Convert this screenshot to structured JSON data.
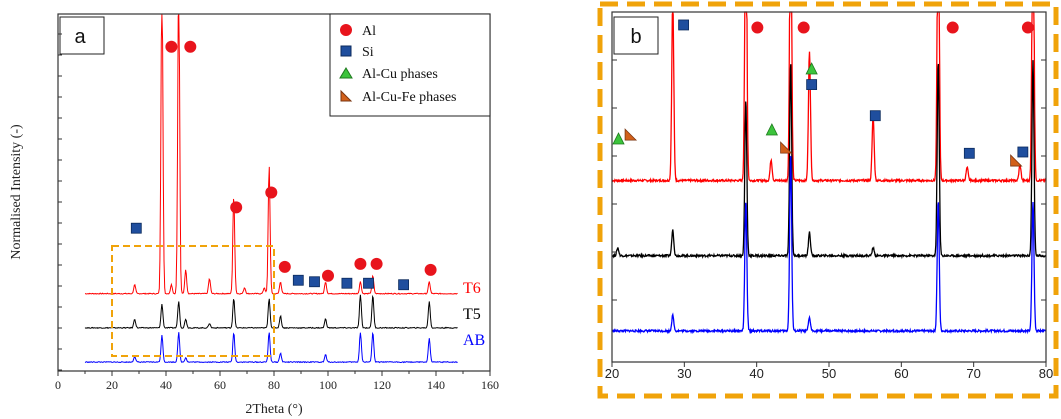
{
  "colors": {
    "t6": "#ff0000",
    "t5": "#000000",
    "ab": "#0000ff",
    "al_marker": "#e8141c",
    "si_marker": "#1f4e9e",
    "alcu_marker": "#3cc43c",
    "alcufe_marker": "#d2601a",
    "highlight_box": "#f0a30a"
  },
  "panel_a": {
    "label": "a",
    "ylabel": "Normalised Intensity (-)",
    "xlabel": "2Theta (°)",
    "legend": [
      {
        "label": "Al",
        "marker": "al-circle"
      },
      {
        "label": "Si",
        "marker": "si-square"
      },
      {
        "label": "Al-Cu phases",
        "marker": "alcu-triangle"
      },
      {
        "label": "Al-Cu-Fe phases",
        "marker": "alcufe-triangle"
      }
    ],
    "curve_labels": [
      "T6",
      "T5",
      "AB"
    ]
  },
  "panel_b": {
    "label": "b"
  },
  "chart_data": [
    {
      "type": "line",
      "panel": "a",
      "xlim": [
        0,
        160
      ],
      "x_ticks": [
        0,
        20,
        40,
        60,
        80,
        100,
        120,
        140,
        160
      ],
      "series": [
        {
          "name": "T6",
          "baseline": 2.6,
          "peaks": [
            [
              28.4,
              0.3
            ],
            [
              38.5,
              11
            ],
            [
              42.0,
              0.3
            ],
            [
              44.7,
              11
            ],
            [
              47.3,
              0.8
            ],
            [
              56.1,
              0.5
            ],
            [
              65.1,
              3.3
            ],
            [
              69.1,
              0.2
            ],
            [
              76.4,
              0.2
            ],
            [
              78.2,
              4.3
            ],
            [
              82.4,
              0.4
            ],
            [
              99.1,
              0.4
            ],
            [
              112.0,
              0.4
            ],
            [
              116.6,
              0.6
            ],
            [
              137.5,
              0.4
            ]
          ]
        },
        {
          "name": "T5",
          "baseline": 1.45,
          "peaks": [
            [
              28.4,
              0.3
            ],
            [
              38.5,
              0.8
            ],
            [
              44.7,
              0.9
            ],
            [
              47.3,
              0.3
            ],
            [
              56.1,
              0.15
            ],
            [
              65.1,
              1.0
            ],
            [
              78.2,
              1.0
            ],
            [
              82.4,
              0.4
            ],
            [
              99.1,
              0.3
            ],
            [
              112.0,
              1.1
            ],
            [
              116.6,
              1.1
            ],
            [
              137.5,
              0.9
            ]
          ]
        },
        {
          "name": "AB",
          "baseline": 0.3,
          "peaks": [
            [
              28.4,
              0.2
            ],
            [
              38.5,
              0.9
            ],
            [
              44.7,
              1.0
            ],
            [
              47.3,
              0.15
            ],
            [
              65.1,
              1.0
            ],
            [
              78.2,
              1.0
            ],
            [
              82.4,
              0.3
            ],
            [
              99.1,
              0.25
            ],
            [
              112.0,
              1.0
            ],
            [
              116.6,
              1.0
            ],
            [
              137.5,
              0.8
            ]
          ]
        }
      ],
      "markers": [
        {
          "phase": "Al",
          "x": 42,
          "y": 10.9
        },
        {
          "phase": "Al",
          "x": 49,
          "y": 10.9
        },
        {
          "phase": "Al",
          "x": 66,
          "y": 5.5
        },
        {
          "phase": "Al",
          "x": 79,
          "y": 6.0
        },
        {
          "phase": "Al",
          "x": 84,
          "y": 3.5
        },
        {
          "phase": "Al",
          "x": 100,
          "y": 3.2
        },
        {
          "phase": "Al",
          "x": 112,
          "y": 3.6
        },
        {
          "phase": "Al",
          "x": 118,
          "y": 3.6
        },
        {
          "phase": "Al",
          "x": 138,
          "y": 3.4
        },
        {
          "phase": "Si",
          "x": 29,
          "y": 4.8
        },
        {
          "phase": "Si",
          "x": 89,
          "y": 3.05
        },
        {
          "phase": "Si",
          "x": 95,
          "y": 3.0
        },
        {
          "phase": "Si",
          "x": 107,
          "y": 2.95
        },
        {
          "phase": "Si",
          "x": 115,
          "y": 2.95
        },
        {
          "phase": "Si",
          "x": 128,
          "y": 2.9
        }
      ],
      "highlight_range": [
        20,
        80
      ]
    },
    {
      "type": "line",
      "panel": "b",
      "xlim": [
        20,
        80
      ],
      "x_ticks": [
        20,
        30,
        40,
        50,
        60,
        70,
        80
      ],
      "series": [
        {
          "name": "T6",
          "baseline": 7.0,
          "peaks": [
            [
              28.4,
              7
            ],
            [
              38.5,
              12
            ],
            [
              42.0,
              0.8
            ],
            [
              44.7,
              12
            ],
            [
              47.3,
              5.0
            ],
            [
              56.1,
              2.5
            ],
            [
              65.1,
              12
            ],
            [
              69.1,
              0.5
            ],
            [
              76.4,
              0.6
            ],
            [
              78.2,
              12
            ]
          ]
        },
        {
          "name": "T5",
          "baseline": 4.1,
          "peaks": [
            [
              20.8,
              0.3
            ],
            [
              28.4,
              1.0
            ],
            [
              38.5,
              6.0
            ],
            [
              44.7,
              7.5
            ],
            [
              47.3,
              0.9
            ],
            [
              56.1,
              0.3
            ],
            [
              65.1,
              7.5
            ],
            [
              78.2,
              7.5
            ]
          ]
        },
        {
          "name": "AB",
          "baseline": 1.2,
          "peaks": [
            [
              28.4,
              0.6
            ],
            [
              38.5,
              5.0
            ],
            [
              44.7,
              6.8
            ],
            [
              47.3,
              0.5
            ],
            [
              65.1,
              5.0
            ],
            [
              78.2,
              5.0
            ]
          ]
        }
      ],
      "markers": [
        {
          "phase": "Si",
          "x": 29.9,
          "y": 13.0
        },
        {
          "phase": "Al",
          "x": 40.1,
          "y": 12.9
        },
        {
          "phase": "Al",
          "x": 46.5,
          "y": 12.9
        },
        {
          "phase": "Al",
          "x": 67.1,
          "y": 12.9
        },
        {
          "phase": "Al",
          "x": 77.5,
          "y": 12.9
        },
        {
          "phase": "Al-Cu",
          "x": 20.9,
          "y": 8.6
        },
        {
          "phase": "Al-Cu-Fe",
          "x": 22.5,
          "y": 8.75
        },
        {
          "phase": "Al-Cu",
          "x": 42.1,
          "y": 8.95
        },
        {
          "phase": "Al-Cu-Fe",
          "x": 44.0,
          "y": 8.25
        },
        {
          "phase": "Al-Cu",
          "x": 47.6,
          "y": 11.3
        },
        {
          "phase": "Si",
          "x": 47.6,
          "y": 10.7
        },
        {
          "phase": "Si",
          "x": 56.4,
          "y": 9.5
        },
        {
          "phase": "Si",
          "x": 69.4,
          "y": 8.05
        },
        {
          "phase": "Al-Cu-Fe",
          "x": 75.8,
          "y": 7.75
        },
        {
          "phase": "Si",
          "x": 76.8,
          "y": 8.1
        }
      ]
    }
  ]
}
